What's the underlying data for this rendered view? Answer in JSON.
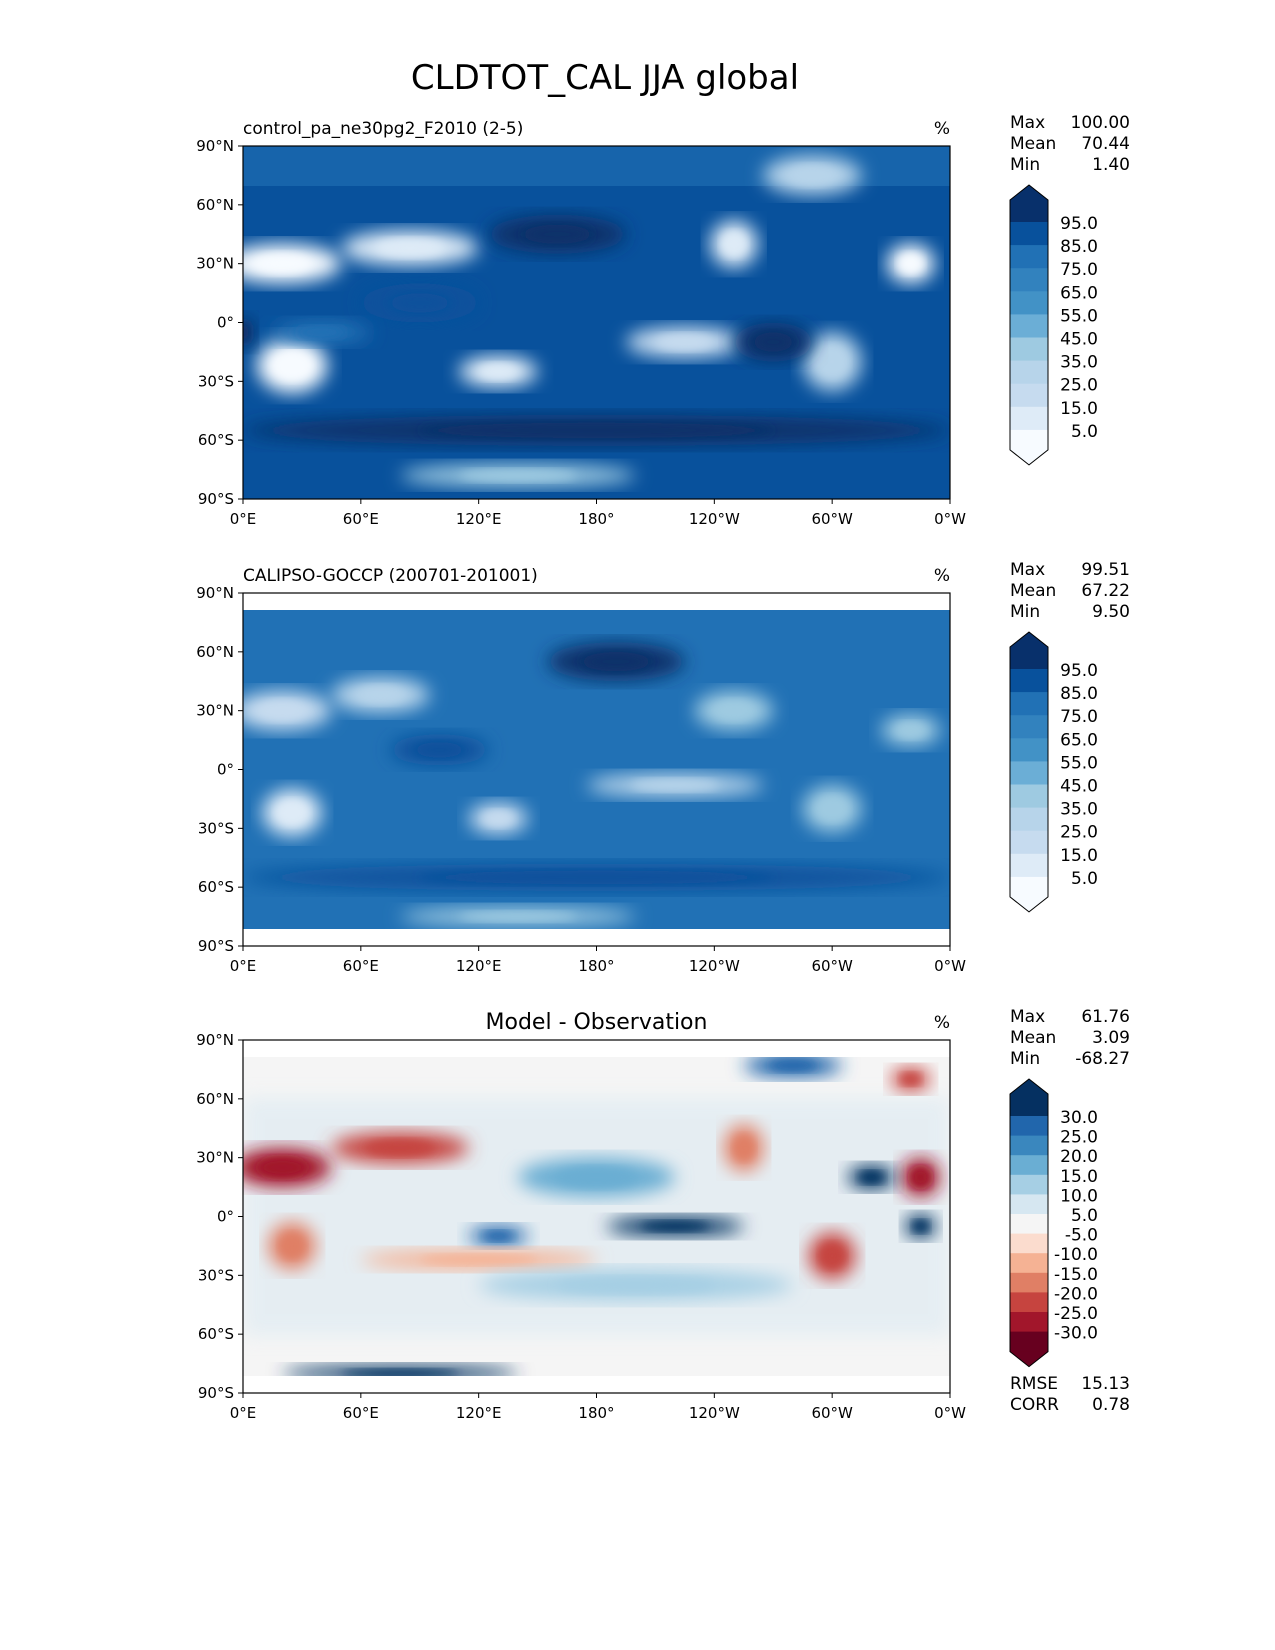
{
  "chart_data": {
    "type": "heatmap",
    "title": "CLDTOT_CAL JJA global",
    "lon_ticks": [
      "0°E",
      "60°E",
      "120°E",
      "180°",
      "120°W",
      "60°W",
      "0°W"
    ],
    "lat_ticks": [
      "90°N",
      "60°N",
      "30°N",
      "0°",
      "30°S",
      "60°S",
      "90°S"
    ],
    "panels": [
      {
        "title_left": "control_pa_ne30pg2_F2010 (2-5)",
        "title_center": "",
        "units": "%",
        "stats": [
          [
            "Max",
            "100.00"
          ],
          [
            "Mean",
            "70.44"
          ],
          [
            "Min",
            "1.40"
          ]
        ],
        "colorbar_ticks": [
          "95.0",
          "85.0",
          "75.0",
          "65.0",
          "55.0",
          "45.0",
          "35.0",
          "25.0",
          "15.0",
          "5.0"
        ],
        "colorbar_colors": [
          "#08306b",
          "#08519c",
          "#2171b5",
          "#3282be",
          "#4292c6",
          "#6baed6",
          "#9ecae1",
          "#b7d4ea",
          "#c6dbef",
          "#deebf7",
          "#f7fbff"
        ]
      },
      {
        "title_left": "CALIPSO-GOCCP (200701-201001)",
        "title_center": "",
        "units": "%",
        "stats": [
          [
            "Max",
            "99.51"
          ],
          [
            "Mean",
            "67.22"
          ],
          [
            "Min",
            "9.50"
          ]
        ],
        "colorbar_ticks": [
          "95.0",
          "85.0",
          "75.0",
          "65.0",
          "55.0",
          "45.0",
          "35.0",
          "25.0",
          "15.0",
          "5.0"
        ],
        "colorbar_colors": [
          "#08306b",
          "#08519c",
          "#2171b5",
          "#3282be",
          "#4292c6",
          "#6baed6",
          "#9ecae1",
          "#b7d4ea",
          "#c6dbef",
          "#deebf7",
          "#f7fbff"
        ]
      },
      {
        "title_left": "",
        "title_center": "Model - Observation",
        "units": "%",
        "stats": [
          [
            "Max",
            "61.76"
          ],
          [
            "Mean",
            "3.09"
          ],
          [
            "Min",
            "-68.27"
          ]
        ],
        "colorbar_ticks": [
          "30.0",
          "25.0",
          "20.0",
          "15.0",
          "10.0",
          "5.0",
          "-5.0",
          "-10.0",
          "-15.0",
          "-20.0",
          "-25.0",
          "-30.0"
        ],
        "colorbar_colors": [
          "#053061",
          "#2166ac",
          "#3a87be",
          "#6aaed3",
          "#a6cfe4",
          "#d6e7f1",
          "#f5f5f5",
          "#fbdcce",
          "#f5b294",
          "#e07f65",
          "#c6443f",
          "#a2162b",
          "#67001f"
        ],
        "metrics": [
          [
            "RMSE",
            "15.13"
          ],
          [
            "CORR",
            "0.78"
          ]
        ]
      }
    ]
  }
}
